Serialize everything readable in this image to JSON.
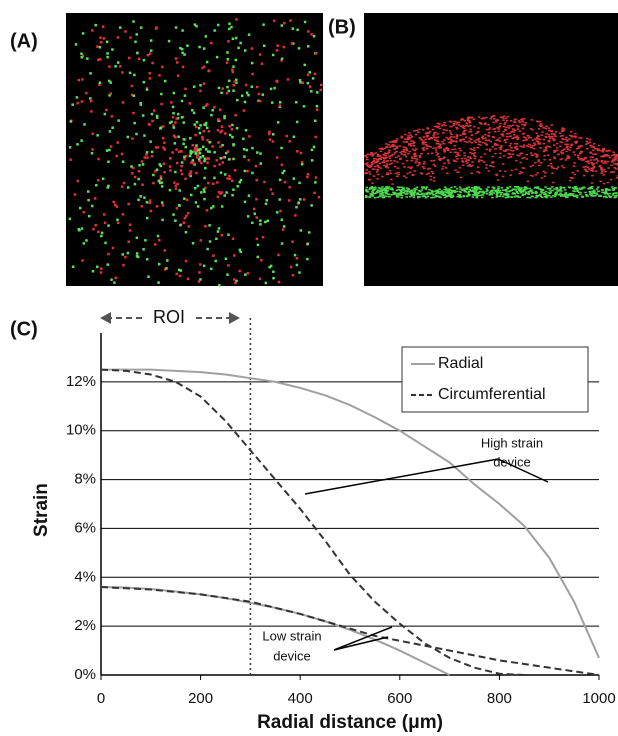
{
  "panel_labels": [
    "(A)",
    "(B)",
    "(C)"
  ],
  "chart_data": {
    "type": "line",
    "x_label": "Radial distance (μm)",
    "y_label": "Strain",
    "roi_label": "ROI",
    "roi_x": 300,
    "x": [
      0,
      50,
      100,
      150,
      200,
      250,
      300,
      350,
      400,
      450,
      500,
      550,
      600,
      650,
      700,
      750,
      800,
      850,
      900,
      950,
      1000
    ],
    "series": [
      {
        "name": "Radial",
        "color": "#a0a0a0",
        "dashed": false,
        "values": [
          12.5,
          12.5,
          12.5,
          12.45,
          12.4,
          12.3,
          12.15,
          12.0,
          11.75,
          11.45,
          11.05,
          10.55,
          10.0,
          9.35,
          8.7,
          7.8,
          7.0,
          6.1,
          4.8,
          3.0,
          0.7
        ]
      },
      {
        "name": "Circumferential",
        "color": "#333333",
        "dashed": true,
        "values": [
          12.5,
          12.45,
          12.3,
          12.0,
          11.4,
          10.4,
          9.2,
          8.0,
          6.8,
          5.5,
          4.1,
          3.0,
          2.1,
          1.3,
          0.7,
          0.3,
          0.05,
          0,
          null,
          null,
          null
        ]
      },
      {
        "name": "Radial",
        "color": "#a0a0a0",
        "dashed": false,
        "values": [
          3.6,
          3.58,
          3.52,
          3.42,
          3.3,
          3.15,
          2.95,
          2.75,
          2.5,
          2.2,
          1.85,
          1.45,
          1.0,
          0.5,
          0,
          null,
          null,
          null,
          null,
          null,
          null
        ]
      },
      {
        "name": "Circumferential",
        "color": "#333333",
        "dashed": true,
        "values": [
          3.6,
          3.55,
          3.5,
          3.4,
          3.3,
          3.15,
          3.0,
          2.75,
          2.5,
          2.2,
          1.9,
          1.6,
          1.4,
          1.2,
          1.0,
          0.8,
          0.6,
          0.45,
          0.3,
          0.15,
          0
        ]
      }
    ],
    "annotations": [
      [
        "High strain",
        "device"
      ],
      [
        "Low strain",
        "device"
      ]
    ],
    "xlim": [
      0,
      1000
    ],
    "xticks": [
      0,
      200,
      400,
      600,
      800,
      1000
    ],
    "ylim": [
      0,
      14
    ],
    "yticks": [
      {
        "value": 0,
        "label": "0%"
      },
      {
        "value": 2,
        "label": "2%"
      },
      {
        "value": 4,
        "label": "4%"
      },
      {
        "value": 6,
        "label": "6%"
      },
      {
        "value": 8,
        "label": "8%"
      },
      {
        "value": 10,
        "label": "10%"
      },
      {
        "value": 12,
        "label": "12%"
      }
    ],
    "grid": true
  }
}
